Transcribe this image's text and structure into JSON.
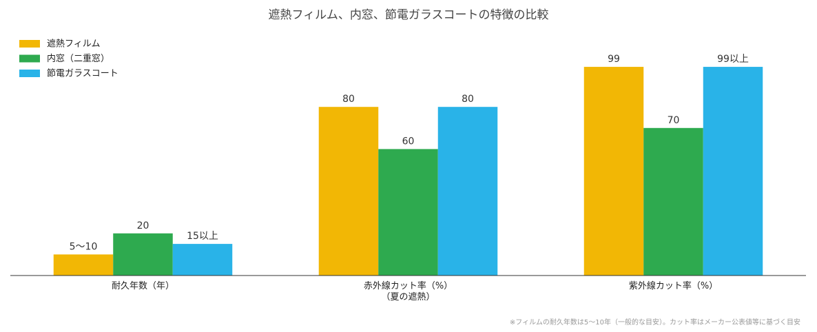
{
  "chart_data": {
    "type": "bar",
    "title": "遮熱フィルム、内窓、節電ガラスコートの特徴の比較",
    "categories": [
      "耐久年数（年）",
      "赤外線カット率（%）\n（夏の遮熱）",
      "紫外線カット率（%）"
    ],
    "series": [
      {
        "name": "遮熱フィルム",
        "color": "#f2b705",
        "values": [
          10,
          80,
          99
        ],
        "value_labels": [
          "5〜10",
          "80",
          "99"
        ]
      },
      {
        "name": "内窓（二重窓）",
        "color": "#2eaa4f",
        "values": [
          20,
          60,
          70
        ]
      },
      {
        "name": "節電ガラスコート",
        "color": "#29b3e8",
        "values": [
          15,
          80,
          99
        ],
        "value_labels": [
          "15以上",
          "80",
          "99以上"
        ]
      }
    ],
    "ylim": [
      0,
      100
    ],
    "legend": "top-left",
    "note": "※フィルムの耐久年数は5〜10年（一般的な目安）。カット率はメーカー公表値等に基づく目安"
  }
}
